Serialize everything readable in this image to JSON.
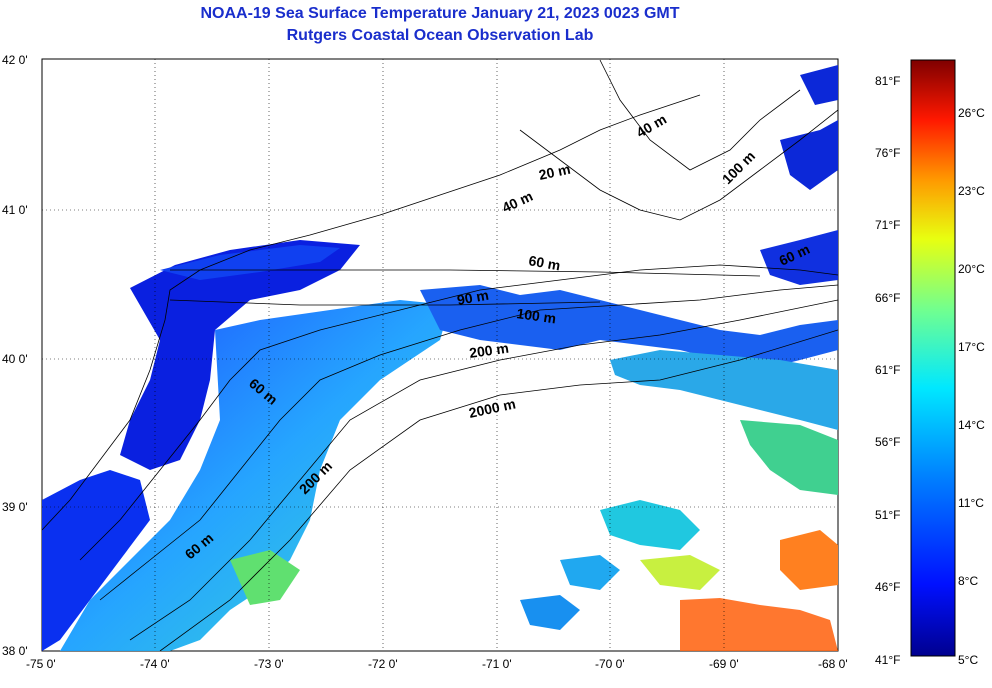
{
  "title": "NOAA-19 Sea Surface Temperature January 21, 2023 0023 GMT",
  "subtitle": "Rutgers Coastal Ocean Observation Lab",
  "axes": {
    "x_ticks": [
      "-75 0'",
      "-74 0'",
      "-73 0'",
      "-72 0'",
      "-71 0'",
      "-70 0'",
      "-69 0'",
      "-68 0'"
    ],
    "y_ticks": [
      "42 0'",
      "41 0'",
      "40 0'",
      "39 0'",
      "38 0'"
    ]
  },
  "contour_labels": [
    "20 m",
    "40 m",
    "40 m",
    "100 m",
    "60 m",
    "60 m",
    "90 m",
    "100 m",
    "200 m",
    "2000 m",
    "60 m",
    "200 m",
    "60 m"
  ],
  "colorbar": {
    "fahrenheit": [
      "81°F",
      "76°F",
      "71°F",
      "66°F",
      "61°F",
      "56°F",
      "51°F",
      "46°F",
      "41°F"
    ],
    "celsius": [
      "26°C",
      "23°C",
      "20°C",
      "17°C",
      "14°C",
      "11°C",
      "8°C",
      "5°C"
    ]
  },
  "colors": {
    "title": "#1a2ecc",
    "land": "#ffffff",
    "cold": "#0000c8",
    "warm": "#ff4000"
  }
}
